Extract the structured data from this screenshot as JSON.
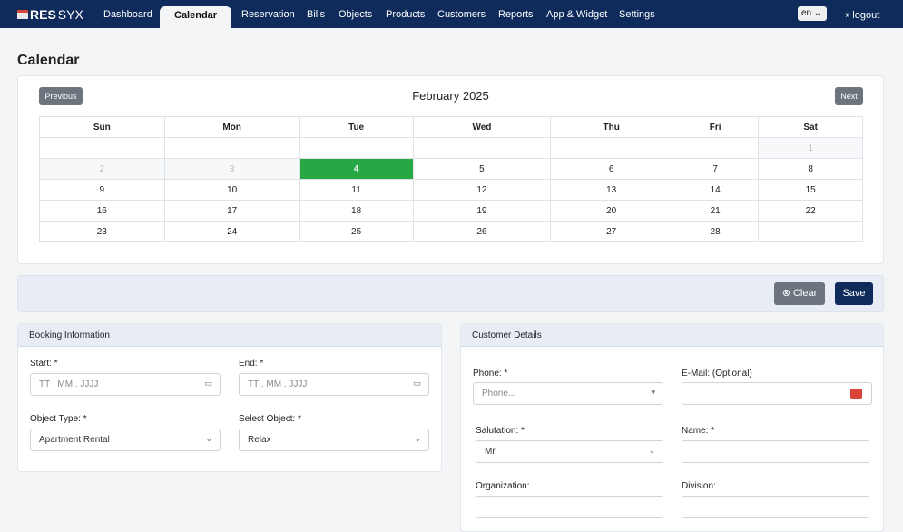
{
  "nav": {
    "logo": "RESSYX",
    "logo_a": "RES",
    "logo_b": "SYX",
    "items": [
      "Dashboard",
      "Calendar",
      "Reservation",
      "Bills",
      "Objects",
      "Products",
      "Customers",
      "Reports",
      "App & Widget",
      "Settings"
    ],
    "active": "Calendar",
    "lang": "en",
    "logout": "logout"
  },
  "page_title": "Calendar",
  "calendar": {
    "prev": "Previous",
    "next": "Next",
    "month": "February 2025",
    "days": [
      "Sun",
      "Mon",
      "Tue",
      "Wed",
      "Thu",
      "Fri",
      "Sat"
    ],
    "weeks": [
      [
        "",
        "",
        "",
        "",
        "",
        "",
        "1"
      ],
      [
        "2",
        "3",
        "4",
        "5",
        "6",
        "7",
        "8"
      ],
      [
        "9",
        "10",
        "11",
        "12",
        "13",
        "14",
        "15"
      ],
      [
        "16",
        "17",
        "18",
        "19",
        "20",
        "21",
        "22"
      ],
      [
        "23",
        "24",
        "25",
        "26",
        "27",
        "28",
        ""
      ]
    ],
    "today": "4",
    "today_color": "#28a745"
  },
  "actions": {
    "clear": "Clear",
    "save": "Save"
  },
  "booking": {
    "title": "Booking Information",
    "start_label": "Start: *",
    "start_placeholder": "TT . MM . JJJJ",
    "end_label": "End: *",
    "end_placeholder": "TT . MM . JJJJ",
    "object_type_label": "Object Type: *",
    "object_type_value": "Apartment Rental",
    "select_object_label": "Select Object: *",
    "select_object_value": "Relax"
  },
  "customer": {
    "title": "Customer Details",
    "phone_label": "Phone: *",
    "phone_placeholder": "Phone...",
    "email_label": "E-Mail: (Optional)",
    "salutation_label": "Salutation: *",
    "salutation_value": "Mr.",
    "name_label": "Name: *",
    "organization_label": "Organization:",
    "division_label": "Division:"
  }
}
